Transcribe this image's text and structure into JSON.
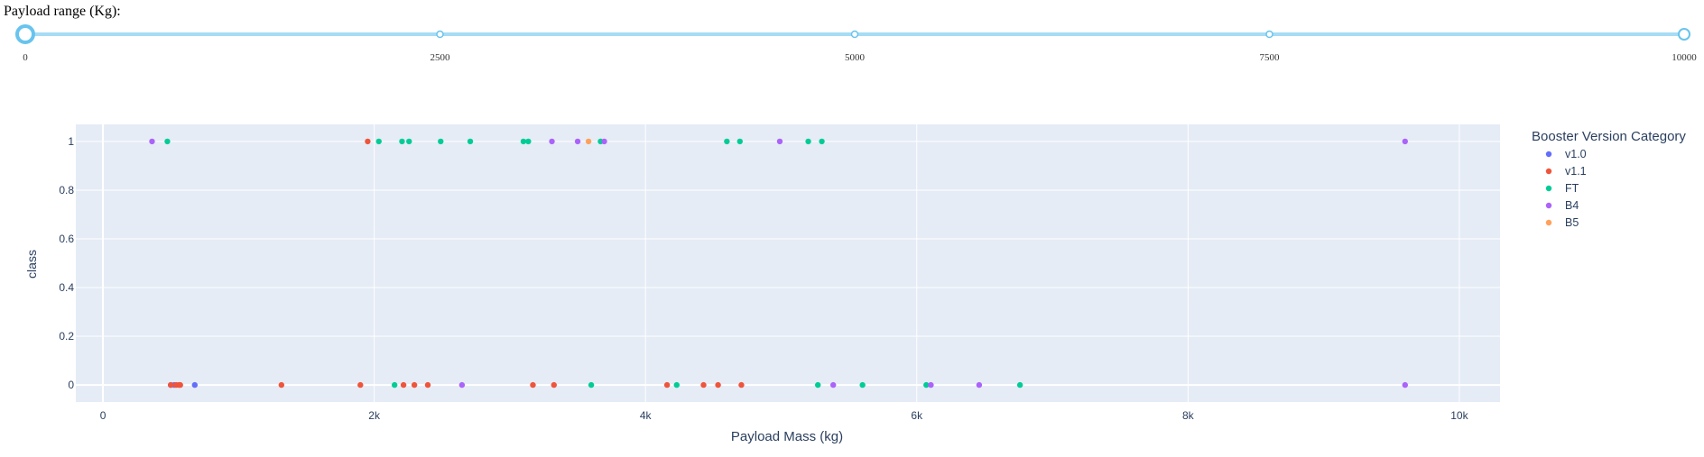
{
  "slider": {
    "label": "Payload range (Kg):",
    "min": 0,
    "max": 10000,
    "value": [
      0,
      10000
    ],
    "marks": [
      "0",
      "2500",
      "5000",
      "7500",
      "10000"
    ],
    "track_color": "#a6dcf5",
    "handle_color": "#68c4ee"
  },
  "chart_data": {
    "type": "scatter",
    "xlabel": "Payload Mass (kg)",
    "ylabel": "class",
    "xlim": [
      -200,
      10300
    ],
    "ylim": [
      -0.07,
      1.07
    ],
    "x_ticks": [
      0,
      2000,
      4000,
      6000,
      8000,
      10000
    ],
    "x_tick_labels": [
      "0",
      "2k",
      "4k",
      "6k",
      "8k",
      "10k"
    ],
    "y_ticks": [
      0,
      0.2,
      0.4,
      0.6,
      0.8,
      1
    ],
    "y_tick_labels": [
      "0",
      "0.2",
      "0.4",
      "0.6",
      "0.8",
      "1"
    ],
    "grid": true,
    "background": "#e5ecf6",
    "legend": {
      "title": "Booster Version Category",
      "placement": "right"
    },
    "series": [
      {
        "name": "v1.0",
        "color": "#636efa",
        "points": [
          [
            500,
            0
          ],
          [
            525,
            0
          ],
          [
            677,
            0
          ]
        ]
      },
      {
        "name": "v1.1",
        "color": "#ef553b",
        "points": [
          [
            1952,
            1
          ],
          [
            500,
            0
          ],
          [
            540,
            0
          ],
          [
            560,
            0
          ],
          [
            570,
            0
          ],
          [
            1316,
            0
          ],
          [
            1898,
            0
          ],
          [
            2216,
            0
          ],
          [
            2296,
            0
          ],
          [
            2395,
            0
          ],
          [
            3170,
            0
          ],
          [
            3325,
            0
          ],
          [
            4159,
            0
          ],
          [
            4428,
            0
          ],
          [
            4535,
            0
          ],
          [
            4707,
            0
          ]
        ]
      },
      {
        "name": "FT",
        "color": "#00cc96",
        "points": [
          [
            475,
            1
          ],
          [
            2034,
            1
          ],
          [
            2205,
            1
          ],
          [
            2257,
            1
          ],
          [
            2490,
            1
          ],
          [
            2708,
            1
          ],
          [
            3100,
            1
          ],
          [
            3136,
            1
          ],
          [
            3669,
            1
          ],
          [
            4600,
            1
          ],
          [
            4696,
            1
          ],
          [
            5200,
            1
          ],
          [
            5300,
            1
          ],
          [
            2150,
            0
          ],
          [
            3600,
            0
          ],
          [
            4230,
            0
          ],
          [
            5271,
            0
          ],
          [
            5600,
            0
          ],
          [
            6070,
            0
          ],
          [
            6761,
            0
          ]
        ]
      },
      {
        "name": "B4",
        "color": "#ab63fa",
        "points": [
          [
            362,
            1
          ],
          [
            3310,
            1
          ],
          [
            3500,
            1
          ],
          [
            3696,
            1
          ],
          [
            4990,
            1
          ],
          [
            9600,
            1
          ],
          [
            2647,
            0
          ],
          [
            5384,
            0
          ],
          [
            6104,
            0
          ],
          [
            6460,
            0
          ],
          [
            9600,
            0
          ]
        ]
      },
      {
        "name": "B5",
        "color": "#ffa15a",
        "points": [
          [
            3580,
            1
          ]
        ]
      }
    ]
  }
}
